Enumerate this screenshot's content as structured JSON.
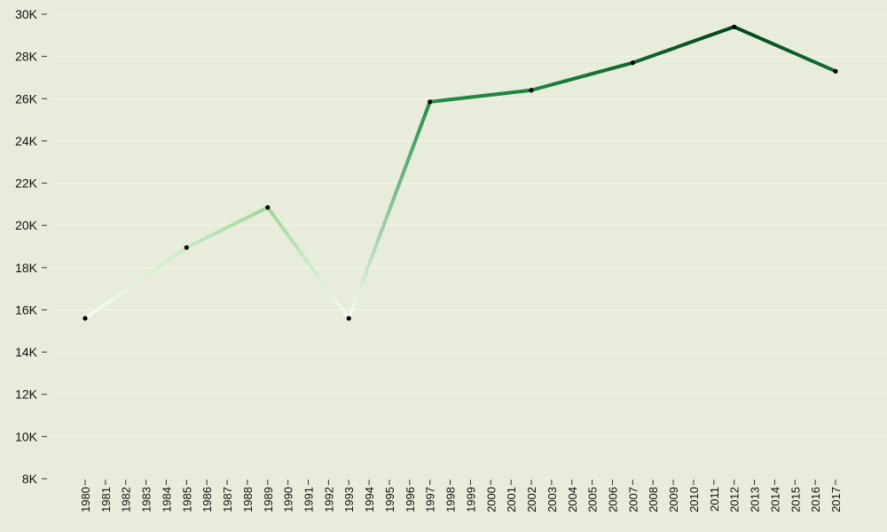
{
  "chart_data": {
    "type": "line",
    "title": "",
    "xlabel": "",
    "ylabel": "",
    "grid": true,
    "legend": "none",
    "categories": [
      "1980",
      "1981",
      "1982",
      "1983",
      "1984",
      "1985",
      "1986",
      "1987",
      "1988",
      "1989",
      "1990",
      "1991",
      "1992",
      "1993",
      "1994",
      "1995",
      "1996",
      "1997",
      "1998",
      "1999",
      "2000",
      "2001",
      "2002",
      "2003",
      "2004",
      "2005",
      "2006",
      "2007",
      "2008",
      "2009",
      "2010",
      "2011",
      "2012",
      "2013",
      "2014",
      "2015",
      "2016",
      "2017"
    ],
    "series": [
      {
        "points": [
          {
            "x": "1980",
            "y": 15600
          },
          {
            "x": "1985",
            "y": 18950
          },
          {
            "x": "1989",
            "y": 20850
          },
          {
            "x": "1993",
            "y": 15600
          },
          {
            "x": "1997",
            "y": 25850
          },
          {
            "x": "2002",
            "y": 26400
          },
          {
            "x": "2007",
            "y": 27700
          },
          {
            "x": "2012",
            "y": 29400
          },
          {
            "x": "2017",
            "y": 27300
          }
        ]
      }
    ],
    "ylim": [
      8000,
      30000
    ],
    "yticks": [
      8000,
      10000,
      12000,
      14000,
      16000,
      18000,
      20000,
      22000,
      24000,
      26000,
      28000,
      30000
    ],
    "ytick_labels": [
      "8K",
      "10K",
      "12K",
      "14K",
      "16K",
      "18K",
      "20K",
      "22K",
      "24K",
      "26K",
      "28K",
      "30K"
    ],
    "color_scale": [
      "#f7fcf5",
      "#c7e9c0",
      "#74c476",
      "#238b45",
      "#00441b"
    ]
  }
}
